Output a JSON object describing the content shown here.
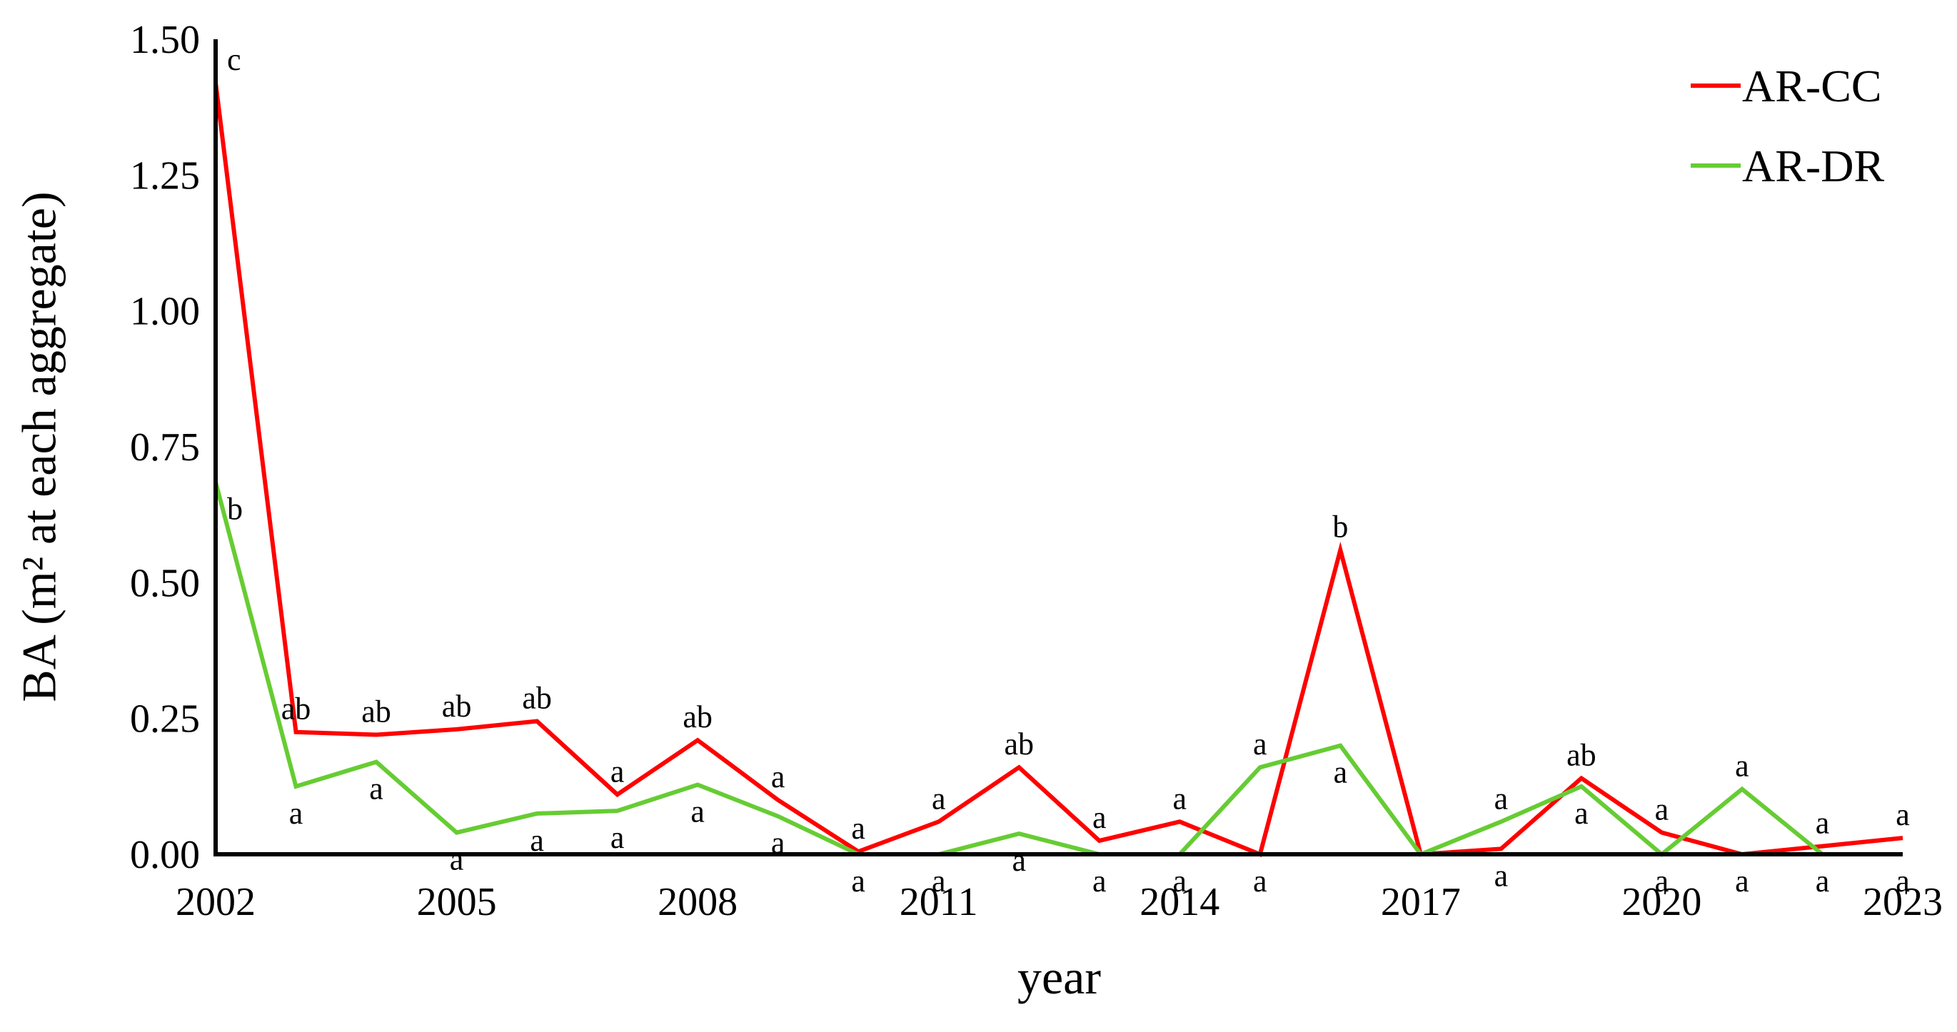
{
  "chart_data": {
    "type": "line",
    "title": "",
    "xlabel": "year",
    "ylabel": "BA (m² at each aggregate)",
    "x": [
      2002,
      2003,
      2004,
      2005,
      2006,
      2007,
      2008,
      2009,
      2010,
      2011,
      2012,
      2013,
      2014,
      2015,
      2016,
      2017,
      2018,
      2019,
      2020,
      2021,
      2022,
      2023
    ],
    "xticks": [
      "2002",
      "2005",
      "2008",
      "2011",
      "2014",
      "2017",
      "2020",
      "2023"
    ],
    "yticks": [
      "0.00",
      "0.25",
      "0.50",
      "0.75",
      "1.00",
      "1.25",
      "1.50"
    ],
    "xlim": [
      2002,
      2023
    ],
    "ylim": [
      0,
      1.5
    ],
    "grid": false,
    "legend_position": "top-right",
    "series": [
      {
        "name": "AR-CC",
        "color": "#ff0000",
        "values": [
          1.42,
          0.225,
          0.22,
          0.23,
          0.245,
          0.11,
          0.21,
          0.1,
          0.005,
          0.06,
          0.16,
          0.025,
          0.06,
          0.0,
          0.56,
          0.0,
          0.01,
          0.14,
          0.04,
          0.0,
          0.015,
          0.03
        ],
        "labels": [
          "c",
          "ab",
          "ab",
          "ab",
          "ab",
          "a",
          "ab",
          "a",
          "a",
          "a",
          "ab",
          "a",
          "a",
          "a",
          "b",
          "",
          "a",
          "ab",
          "a",
          "a",
          "a",
          "a"
        ]
      },
      {
        "name": "AR-DR",
        "color": "#66cc33",
        "values": [
          0.685,
          0.125,
          0.17,
          0.04,
          0.075,
          0.08,
          0.128,
          0.07,
          0.0,
          0.0,
          0.038,
          0.0,
          0.0,
          0.16,
          0.2,
          0.0,
          0.06,
          0.125,
          0.0,
          0.12,
          0.0,
          0.0
        ],
        "labels": [
          "b",
          "a",
          "a",
          "a",
          "a",
          "a",
          "a",
          "a",
          "a",
          "a",
          "a",
          "a",
          "a",
          "a",
          "a",
          "",
          "a",
          "a",
          "a",
          "a",
          "a",
          "a"
        ]
      }
    ]
  }
}
